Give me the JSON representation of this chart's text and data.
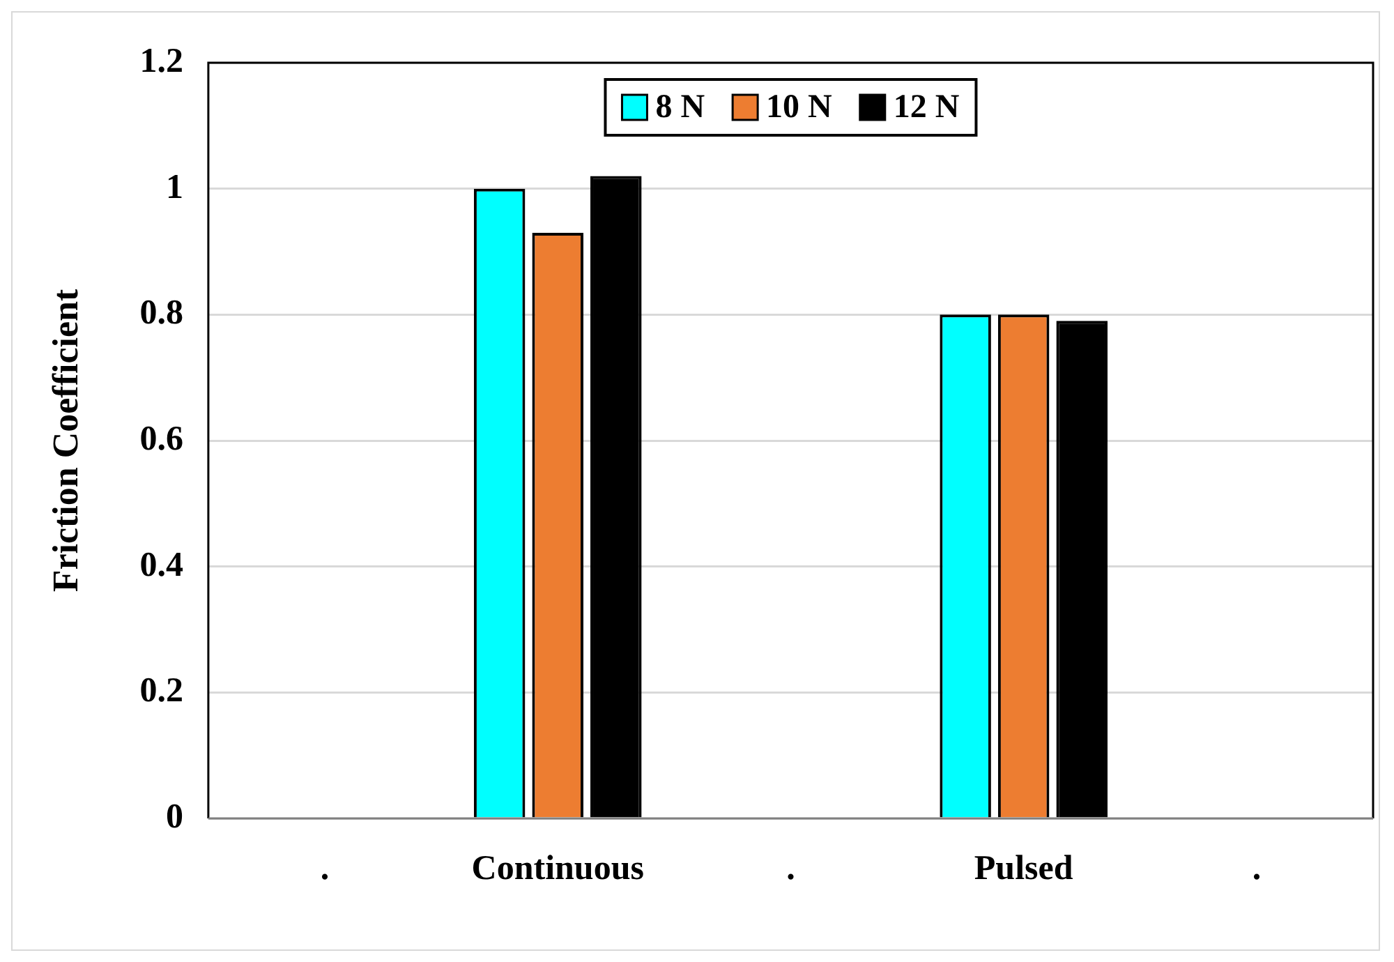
{
  "chart_data": {
    "type": "bar",
    "ylabel": "Friction Coefficient",
    "categories": [
      ".",
      "Continuous",
      ".",
      "Pulsed",
      "."
    ],
    "series": [
      {
        "name": "8 N",
        "color": "#00ffff",
        "values": [
          null,
          1.0,
          null,
          0.8,
          null
        ]
      },
      {
        "name": "10 N",
        "color": "#ed7d31",
        "values": [
          null,
          0.93,
          null,
          0.8,
          null
        ]
      },
      {
        "name": "12 N",
        "color": "#000000",
        "values": [
          null,
          1.02,
          null,
          0.79,
          null
        ]
      }
    ],
    "ylim": [
      0,
      1.2
    ],
    "yticks": [
      0,
      0.2,
      0.4,
      0.6,
      0.8,
      1,
      1.2
    ],
    "grid": "y",
    "legend": "top"
  }
}
